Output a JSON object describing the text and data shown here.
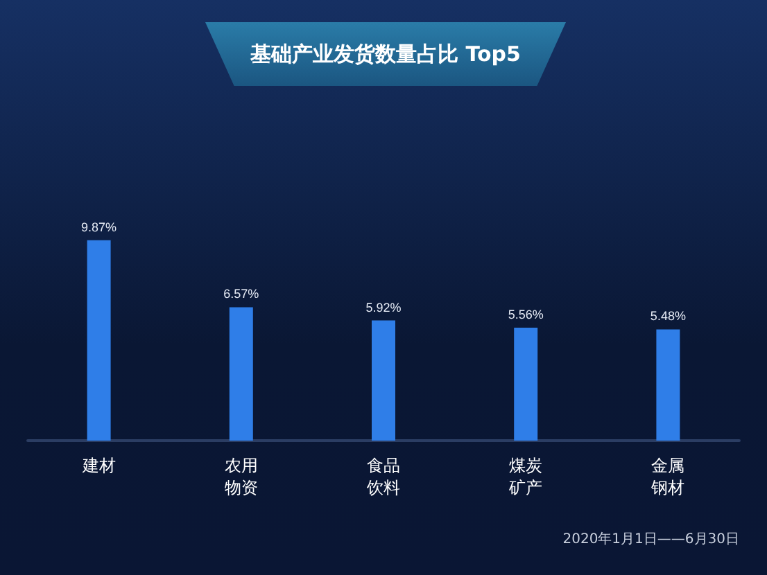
{
  "chart_data": {
    "type": "bar",
    "title": "基础产业发货数量占比 Top5",
    "categories": [
      "建材",
      "农用物资",
      "食品饮料",
      "煤炭矿产",
      "金属钢材"
    ],
    "values": [
      9.87,
      6.57,
      5.92,
      5.56,
      5.48
    ],
    "value_labels": [
      "9.87%",
      "6.57%",
      "5.92%",
      "5.56%",
      "5.48%"
    ],
    "color": "#2f7ee8",
    "annotations": [
      "2020年1月1日——6月30日"
    ]
  }
}
